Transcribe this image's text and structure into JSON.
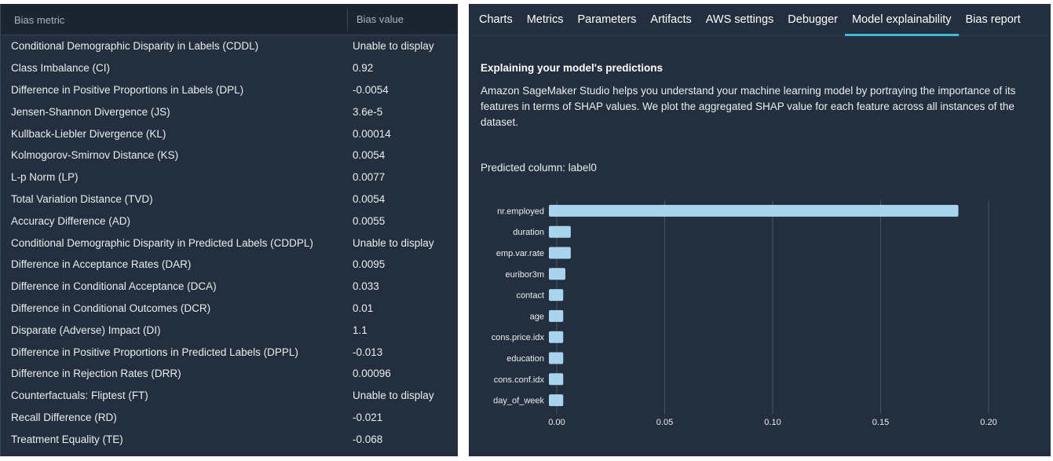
{
  "bias_table": {
    "header_metric": "Bias metric",
    "header_value": "Bias value",
    "rows": [
      {
        "metric": "Conditional Demographic Disparity in Labels (CDDL)",
        "value": "Unable to display"
      },
      {
        "metric": "Class Imbalance (CI)",
        "value": "0.92"
      },
      {
        "metric": "Difference in Positive Proportions in Labels (DPL)",
        "value": "-0.0054"
      },
      {
        "metric": "Jensen-Shannon Divergence (JS)",
        "value": "3.6e-5"
      },
      {
        "metric": "Kullback-Liebler Divergence (KL)",
        "value": "0.00014"
      },
      {
        "metric": "Kolmogorov-Smirnov Distance (KS)",
        "value": "0.0054"
      },
      {
        "metric": "L-p Norm (LP)",
        "value": "0.0077"
      },
      {
        "metric": "Total Variation Distance (TVD)",
        "value": "0.0054"
      },
      {
        "metric": "Accuracy Difference (AD)",
        "value": "0.0055"
      },
      {
        "metric": "Conditional Demographic Disparity in Predicted Labels (CDDPL)",
        "value": "Unable to display"
      },
      {
        "metric": "Difference in Acceptance Rates (DAR)",
        "value": "0.0095"
      },
      {
        "metric": "Difference in Conditional Acceptance (DCA)",
        "value": "0.033"
      },
      {
        "metric": "Difference in Conditional Outcomes (DCR)",
        "value": "0.01"
      },
      {
        "metric": "Disparate (Adverse) Impact (DI)",
        "value": "1.1"
      },
      {
        "metric": "Difference in Positive Proportions in Predicted Labels (DPPL)",
        "value": "-0.013"
      },
      {
        "metric": "Difference in Rejection Rates (DRR)",
        "value": "0.00096"
      },
      {
        "metric": "Counterfactuals: Fliptest (FT)",
        "value": "Unable to display"
      },
      {
        "metric": "Recall Difference (RD)",
        "value": "-0.021"
      },
      {
        "metric": "Treatment Equality (TE)",
        "value": "-0.068"
      }
    ]
  },
  "tabs": [
    {
      "label": "Charts",
      "active": false
    },
    {
      "label": "Metrics",
      "active": false
    },
    {
      "label": "Parameters",
      "active": false
    },
    {
      "label": "Artifacts",
      "active": false
    },
    {
      "label": "AWS settings",
      "active": false
    },
    {
      "label": "Debugger",
      "active": false
    },
    {
      "label": "Model explainability",
      "active": true
    },
    {
      "label": "Bias report",
      "active": false
    }
  ],
  "explain": {
    "title": "Explaining your model's predictions",
    "description": "Amazon SageMaker Studio helps you understand your machine learning model by portraying the importance of its features in terms of SHAP values. We plot the aggregated SHAP value for each feature across all instances of the dataset.",
    "predicted_column": "Predicted column: label0"
  },
  "colors": {
    "bar": "#a9d4ee",
    "grid": "#4a5562",
    "accent": "#44b9d6"
  },
  "chart_data": {
    "type": "bar",
    "orientation": "horizontal",
    "categories": [
      "nr.employed",
      "duration",
      "emp.var.rate",
      "euribor3m",
      "contact",
      "age",
      "cons.price.idx",
      "education",
      "cons.conf.idx",
      "day_of_week"
    ],
    "values": [
      0.186,
      0.0065,
      0.0065,
      0.004,
      0.003,
      0.003,
      0.003,
      0.003,
      0.003,
      0.003
    ],
    "xlim": [
      0,
      0.2
    ],
    "xticks": [
      "0.00",
      "0.05",
      "0.10",
      "0.15",
      "0.20"
    ],
    "grid": true
  }
}
